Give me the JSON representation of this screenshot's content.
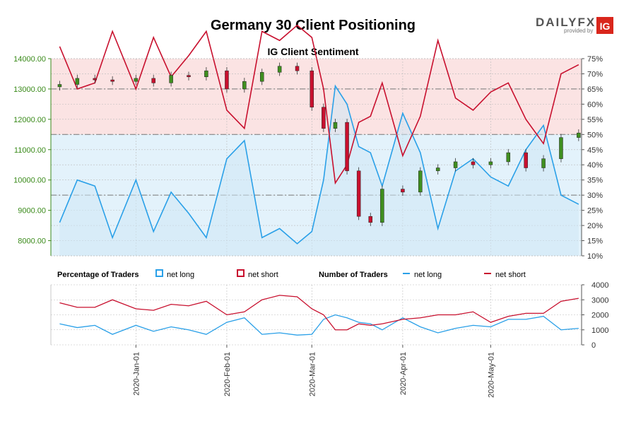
{
  "title": "Germany 30 Client Positioning",
  "logo": {
    "text_main": "DAILYFX",
    "text_sub": "provided by",
    "badge": "IG"
  },
  "colors": {
    "long": "#2aa0e8",
    "short": "#c8102e",
    "price_axis": "#3a8a1a",
    "candle_up": "#3f8f1f",
    "candle_down": "#c8102e",
    "band_short": "#fbe3e3",
    "band_long": "#e3f2fb"
  },
  "main_chart": {
    "subtitle": "IG Client Sentiment",
    "y_left_ticks": [
      "14000.00",
      "13000.00",
      "12000.00",
      "11000.00",
      "10000.00",
      "9000.00",
      "8000.00"
    ],
    "y_right_ticks": [
      "75%",
      "70%",
      "65%",
      "60%",
      "55%",
      "50%",
      "45%",
      "40%",
      "35%",
      "30%",
      "25%",
      "20%",
      "15%",
      "10%"
    ]
  },
  "legend": {
    "pct_title": "Percentage of Traders",
    "pct_long": "net long",
    "pct_short": "net short",
    "num_title": "Number of Traders",
    "num_long": "net long",
    "num_short": "net short"
  },
  "sub_chart": {
    "y_ticks": [
      "4000",
      "3000",
      "2000",
      "1000",
      "0"
    ]
  },
  "x_ticks": [
    "2020-Jan-01",
    "2020-Feb-01",
    "2020-Mar-01",
    "2020-Apr-01",
    "2020-May-01"
  ],
  "chart_data": {
    "type": "line",
    "title": "Germany 30 Client Positioning",
    "subtitle": "IG Client Sentiment",
    "x": [
      "2019-12-06",
      "2019-12-12",
      "2019-12-18",
      "2019-12-24",
      "2020-01-01",
      "2020-01-07",
      "2020-01-13",
      "2020-01-19",
      "2020-01-25",
      "2020-02-01",
      "2020-02-07",
      "2020-02-13",
      "2020-02-19",
      "2020-02-25",
      "2020-03-01",
      "2020-03-05",
      "2020-03-09",
      "2020-03-13",
      "2020-03-17",
      "2020-03-21",
      "2020-03-25",
      "2020-04-01",
      "2020-04-07",
      "2020-04-13",
      "2020-04-19",
      "2020-04-25",
      "2020-05-01",
      "2020-05-07",
      "2020-05-13",
      "2020-05-19",
      "2020-05-25",
      "2020-05-31"
    ],
    "series": [
      {
        "name": "net long",
        "axis": "percent",
        "values": [
          21,
          35,
          33,
          16,
          35,
          18,
          31,
          24,
          16,
          42,
          48,
          16,
          19,
          14,
          18,
          35,
          66,
          60,
          46,
          44,
          33,
          57,
          44,
          19,
          38,
          42,
          36,
          33,
          45,
          53,
          30,
          27
        ]
      },
      {
        "name": "net short",
        "axis": "percent",
        "values": [
          79,
          65,
          67,
          84,
          65,
          82,
          69,
          76,
          84,
          58,
          52,
          84,
          81,
          86,
          82,
          65,
          34,
          40,
          54,
          56,
          67,
          43,
          56,
          81,
          62,
          58,
          64,
          67,
          55,
          47,
          70,
          73
        ]
      },
      {
        "name": "Germany 30 price",
        "axis": "price",
        "values": [
          13150,
          13350,
          13300,
          13250,
          13350,
          13200,
          13450,
          13400,
          13600,
          13000,
          13250,
          13550,
          13750,
          13600,
          12400,
          11700,
          11900,
          10300,
          8800,
          8600,
          9700,
          9600,
          10300,
          10400,
          10600,
          10500,
          10600,
          10900,
          10400,
          10700,
          11400,
          11550
        ]
      },
      {
        "name": "net long",
        "axis": "traders",
        "values": [
          1400,
          1150,
          1300,
          700,
          1300,
          900,
          1200,
          1000,
          700,
          1500,
          1800,
          700,
          800,
          650,
          700,
          1700,
          2000,
          1800,
          1500,
          1400,
          1000,
          1800,
          1200,
          800,
          1100,
          1300,
          1200,
          1700,
          1700,
          1900,
          1000,
          1100
        ]
      },
      {
        "name": "net short",
        "axis": "traders",
        "values": [
          2800,
          2500,
          2500,
          3000,
          2400,
          2300,
          2700,
          2600,
          2900,
          2000,
          2200,
          3000,
          3300,
          3200,
          2400,
          2000,
          1000,
          1000,
          1400,
          1300,
          1400,
          1700,
          1800,
          2000,
          2000,
          2200,
          1500,
          1900,
          2100,
          2100,
          2900,
          3100
        ]
      }
    ],
    "ylim_price": [
      7500,
      14000
    ],
    "ylim_percent": [
      10,
      75
    ],
    "ylim_traders": [
      0,
      4000
    ],
    "reference_lines_percent": [
      65,
      50,
      30
    ],
    "grid": true,
    "legend_placement": "between panels"
  }
}
